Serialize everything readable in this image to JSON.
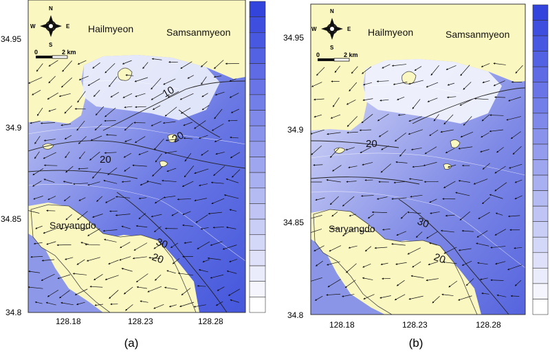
{
  "panels": [
    {
      "caption": "(a)",
      "places": {
        "north": "Hailmyeon",
        "east": "Samsanmyeon",
        "island": "Saryangdo"
      },
      "x_ticks": [
        "128.18",
        "128.23",
        "128.28"
      ],
      "y_ticks": [
        "34.95",
        "34.9",
        "34.85",
        "34.8"
      ],
      "contour_labels": [
        "10",
        "20",
        "20",
        "30",
        "20"
      ],
      "compass": {
        "n": "N",
        "s": "S",
        "e": "E",
        "w": "W"
      },
      "scale": {
        "start": "0",
        "end": "2 km"
      }
    },
    {
      "caption": "(b)",
      "places": {
        "north": "Hailmyeon",
        "east": "Samsanmyeon",
        "island": "Saryangdo"
      },
      "x_ticks": [
        "128.18",
        "128.23",
        "128.28"
      ],
      "y_ticks": [
        "34.95",
        "34.9",
        "34.85",
        "34.8"
      ],
      "contour_labels": [
        "20",
        "30",
        "20"
      ],
      "compass": {
        "n": "N",
        "s": "S",
        "e": "E",
        "w": "W"
      },
      "scale": {
        "start": "0",
        "end": "2 km"
      }
    }
  ],
  "colors": {
    "land": "#fbf7c0",
    "water_light": "#eef0fb",
    "water_mid": "#a9b1ec",
    "water_deep": "#4e5fe0",
    "colorbar_top": "#3344dd",
    "colorbar_bottom": "#ffffff"
  },
  "colorbar_levels": 20
}
